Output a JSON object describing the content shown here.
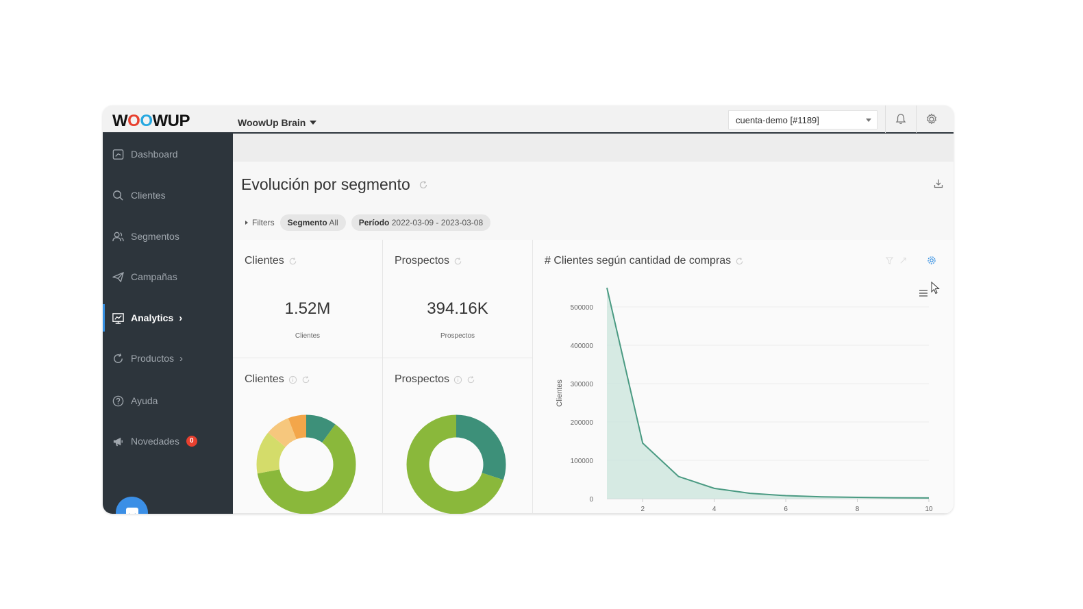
{
  "topbar": {
    "logo": {
      "w": "W",
      "o1": "O",
      "o2": "O",
      "rest": "WUP"
    },
    "menu_label": "WoowUp Brain",
    "account_value": "cuenta-demo [#1189]"
  },
  "sidebar": {
    "items": [
      {
        "label": "Dashboard",
        "icon": "dashboard-icon"
      },
      {
        "label": "Clientes",
        "icon": "search-icon"
      },
      {
        "label": "Segmentos",
        "icon": "users-icon"
      },
      {
        "label": "Campañas",
        "icon": "paper-plane-icon"
      },
      {
        "label": "Analytics",
        "icon": "chart-icon",
        "active": true
      },
      {
        "label": "Productos",
        "icon": "refresh-icon"
      },
      {
        "label": "Ayuda",
        "icon": "help-icon"
      },
      {
        "label": "Novedades",
        "icon": "megaphone-icon",
        "badge": "0"
      }
    ]
  },
  "page": {
    "title": "Evolución por segmento",
    "filters_label": "Filters",
    "chips": [
      {
        "key": "Segmento",
        "value": "All"
      },
      {
        "key": "Período",
        "value": "2022-03-09 - 2023-03-08"
      }
    ]
  },
  "cards": {
    "clientes_kpi": {
      "title": "Clientes",
      "value": "1.52M",
      "sublabel": "Clientes"
    },
    "prospectos_kpi": {
      "title": "Prospectos",
      "value": "394.16K",
      "sublabel": "Prospectos"
    },
    "clientes_donut": {
      "title": "Clientes"
    },
    "prospectos_donut": {
      "title": "Prospectos"
    },
    "compras_chart": {
      "title": "# Clientes según cantidad de compras"
    }
  },
  "colors": {
    "sidebar": "#2d353c",
    "accent": "#348fe2",
    "area_stroke": "#4a9a82",
    "area_fill": "#cfe6de",
    "donut_green": "#8ab83b",
    "donut_teal": "#3d9079",
    "donut_yellow": "#d4dc6a",
    "donut_orange": "#f3a64a",
    "donut_light_orange": "#f6c77d"
  },
  "donuts": {
    "clientes": [
      {
        "color": "donut_teal",
        "value": 0.1
      },
      {
        "color": "donut_green",
        "value": 0.62
      },
      {
        "color": "donut_yellow",
        "value": 0.14
      },
      {
        "color": "donut_light_orange",
        "value": 0.08
      },
      {
        "color": "donut_orange",
        "value": 0.06
      }
    ],
    "prospectos": [
      {
        "color": "donut_teal",
        "value": 0.3
      },
      {
        "color": "donut_green",
        "value": 0.7
      }
    ]
  },
  "chart_data": {
    "type": "area",
    "title": "# Clientes según cantidad de compras",
    "xlabel": "",
    "ylabel": "Clientes",
    "x": [
      1,
      2,
      3,
      4,
      5,
      6,
      7,
      8,
      9,
      10
    ],
    "series": [
      {
        "values": [
          550000,
          145000,
          58000,
          27000,
          14000,
          8000,
          5000,
          3500,
          2500,
          2000
        ]
      }
    ],
    "xticks": [
      "2",
      "4",
      "6",
      "8",
      "10"
    ],
    "yticks": [
      "0",
      "100000",
      "200000",
      "300000",
      "400000",
      "500000"
    ],
    "xlim": [
      1,
      10
    ],
    "ylim": [
      0,
      550000
    ],
    "grid": true,
    "legend": "none"
  }
}
